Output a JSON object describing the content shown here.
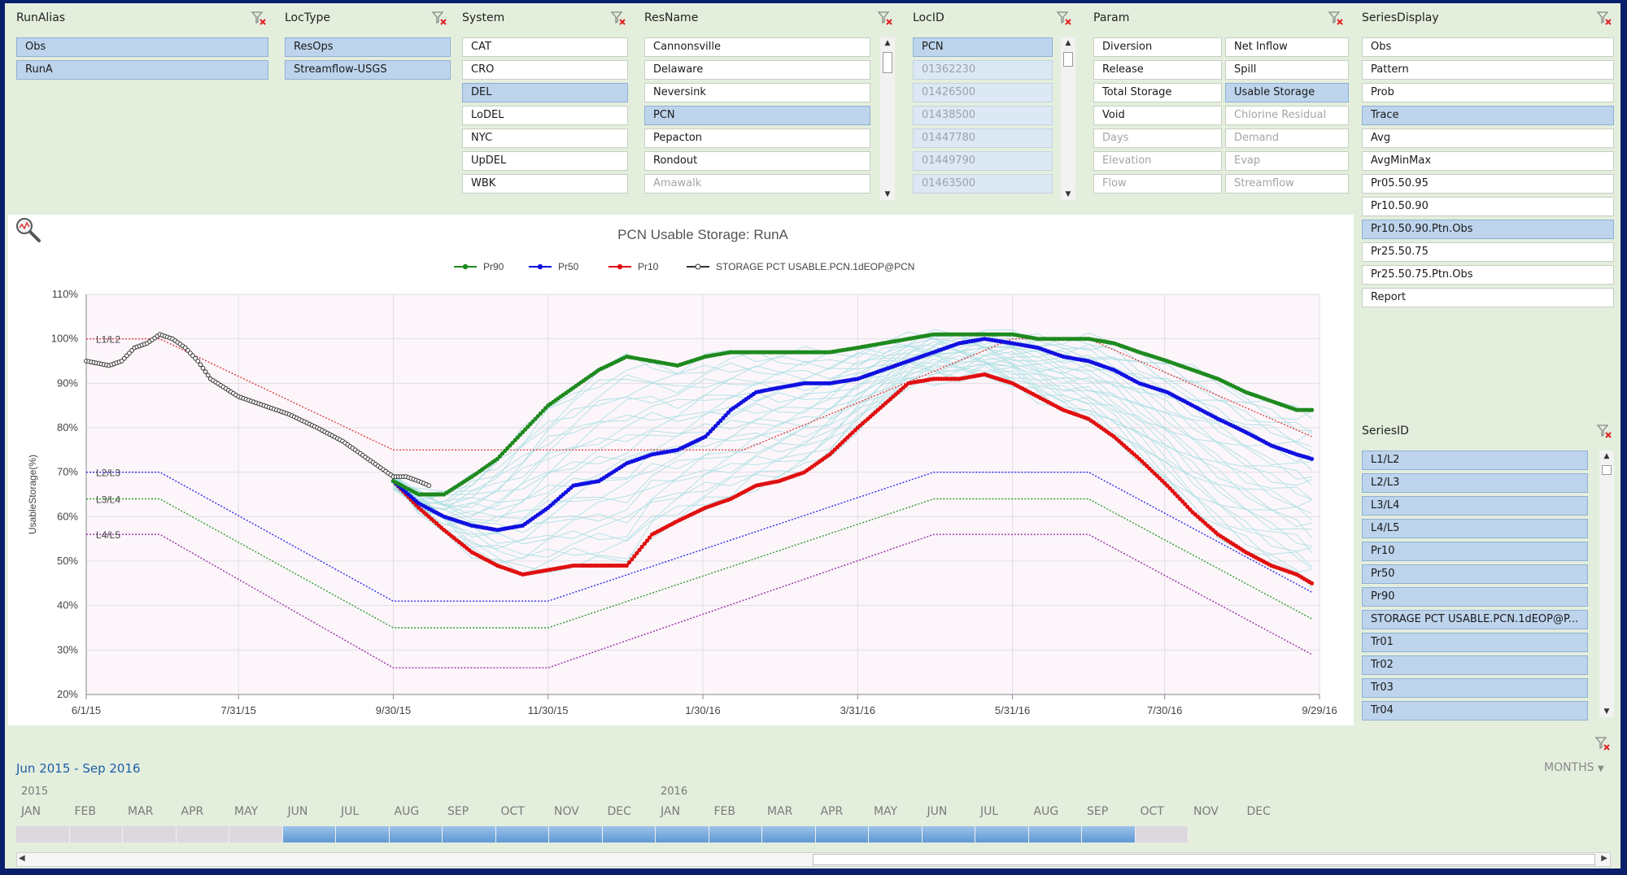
{
  "slicers": {
    "runalias": {
      "title": "RunAlias",
      "items": [
        {
          "label": "Obs",
          "state": "sel"
        },
        {
          "label": "RunA",
          "state": "sel"
        }
      ]
    },
    "loctype": {
      "title": "LocType",
      "items": [
        {
          "label": "ResOps",
          "state": "sel"
        },
        {
          "label": "Streamflow-USGS",
          "state": "sel"
        }
      ]
    },
    "system": {
      "title": "System",
      "items": [
        {
          "label": "CAT",
          "state": ""
        },
        {
          "label": "CRO",
          "state": ""
        },
        {
          "label": "DEL",
          "state": "sel"
        },
        {
          "label": "LoDEL",
          "state": ""
        },
        {
          "label": "NYC",
          "state": ""
        },
        {
          "label": "UpDEL",
          "state": ""
        },
        {
          "label": "WBK",
          "state": ""
        }
      ]
    },
    "resname": {
      "title": "ResName",
      "items": [
        {
          "label": "Cannonsville",
          "state": ""
        },
        {
          "label": "Delaware",
          "state": ""
        },
        {
          "label": "Neversink",
          "state": ""
        },
        {
          "label": "PCN",
          "state": "sel"
        },
        {
          "label": "Pepacton",
          "state": ""
        },
        {
          "label": "Rondout",
          "state": ""
        },
        {
          "label": "Amawalk",
          "state": "dim"
        }
      ]
    },
    "locid": {
      "title": "LocID",
      "items": [
        {
          "label": "PCN",
          "state": "sel"
        },
        {
          "label": "01362230",
          "state": "dimsel"
        },
        {
          "label": "01426500",
          "state": "dimsel"
        },
        {
          "label": "01438500",
          "state": "dimsel"
        },
        {
          "label": "01447780",
          "state": "dimsel"
        },
        {
          "label": "01449790",
          "state": "dimsel"
        },
        {
          "label": "01463500",
          "state": "dimsel"
        }
      ]
    },
    "param": {
      "title": "Param",
      "col1": [
        {
          "label": "Diversion",
          "state": ""
        },
        {
          "label": "Release",
          "state": ""
        },
        {
          "label": "Total Storage",
          "state": ""
        },
        {
          "label": "Void",
          "state": ""
        },
        {
          "label": "Days",
          "state": "dim"
        },
        {
          "label": "Elevation",
          "state": "dim"
        },
        {
          "label": "Flow",
          "state": "dim"
        }
      ],
      "col2": [
        {
          "label": "Net Inflow",
          "state": ""
        },
        {
          "label": "Spill",
          "state": ""
        },
        {
          "label": "Usable Storage",
          "state": "sel"
        },
        {
          "label": "Chlorine Residual",
          "state": "dim"
        },
        {
          "label": "Demand",
          "state": "dim"
        },
        {
          "label": "Evap",
          "state": "dim"
        },
        {
          "label": "Streamflow",
          "state": "dim"
        }
      ]
    },
    "seriesdisplay": {
      "title": "SeriesDisplay",
      "items": [
        {
          "label": "Obs",
          "state": ""
        },
        {
          "label": "Pattern",
          "state": ""
        },
        {
          "label": "Prob",
          "state": ""
        },
        {
          "label": "Trace",
          "state": "sel"
        },
        {
          "label": "Avg",
          "state": ""
        },
        {
          "label": "AvgMinMax",
          "state": ""
        },
        {
          "label": "Pr05.50.95",
          "state": ""
        },
        {
          "label": "Pr10.50.90",
          "state": ""
        },
        {
          "label": "Pr10.50.90.Ptn.Obs",
          "state": "sel"
        },
        {
          "label": "Pr25.50.75",
          "state": ""
        },
        {
          "label": "Pr25.50.75.Ptn.Obs",
          "state": ""
        },
        {
          "label": "Report",
          "state": ""
        }
      ]
    },
    "seriesid": {
      "title": "SeriesID",
      "items": [
        {
          "label": "L1/L2",
          "state": "sel"
        },
        {
          "label": "L2/L3",
          "state": "sel"
        },
        {
          "label": "L3/L4",
          "state": "sel"
        },
        {
          "label": "L4/L5",
          "state": "sel"
        },
        {
          "label": "Pr10",
          "state": "sel"
        },
        {
          "label": "Pr50",
          "state": "sel"
        },
        {
          "label": "Pr90",
          "state": "sel"
        },
        {
          "label": "STORAGE PCT USABLE.PCN.1dEOP@P...",
          "state": "sel"
        },
        {
          "label": "Tr01",
          "state": "sel"
        },
        {
          "label": "Tr02",
          "state": "sel"
        },
        {
          "label": "Tr03",
          "state": "sel"
        },
        {
          "label": "Tr04",
          "state": "sel"
        }
      ]
    }
  },
  "chart_data": {
    "type": "line",
    "title": "PCN Usable Storage: RunA",
    "ylabel": "UsableStorage(%)",
    "xlabel": "",
    "ylim": [
      20,
      110
    ],
    "xlim": [
      "2015-06-01",
      "2016-09-29"
    ],
    "grid": true,
    "legend_position": "top-center",
    "y_ticks": [
      "20%",
      "30%",
      "40%",
      "50%",
      "60%",
      "70%",
      "80%",
      "90%",
      "100%",
      "110%"
    ],
    "x_ticks": [
      "6/1/15",
      "7/31/15",
      "9/30/15",
      "11/30/15",
      "1/30/16",
      "3/31/16",
      "5/31/16",
      "7/30/16",
      "9/29/16"
    ],
    "legend": [
      "Pr90",
      "Pr50",
      "Pr10",
      "STORAGE PCT USABLE.PCN.1dEOP@PCN"
    ],
    "rule_labels": [
      "L1/L2",
      "L2/L3",
      "L3/L4",
      "L4/L5"
    ],
    "series": [
      {
        "name": "Pr90",
        "color": "#1e8a1e",
        "style": "marker",
        "points": [
          [
            "2015-09-30",
            68
          ],
          [
            "2015-10-10",
            65
          ],
          [
            "2015-10-20",
            65
          ],
          [
            "2015-10-31",
            69
          ],
          [
            "2015-11-10",
            73
          ],
          [
            "2015-11-20",
            79
          ],
          [
            "2015-11-30",
            85
          ],
          [
            "2015-12-10",
            89
          ],
          [
            "2015-12-20",
            93
          ],
          [
            "2015-12-31",
            96
          ],
          [
            "2016-01-10",
            95
          ],
          [
            "2016-01-20",
            94
          ],
          [
            "2016-01-31",
            96
          ],
          [
            "2016-02-10",
            97
          ],
          [
            "2016-02-20",
            97
          ],
          [
            "2016-02-29",
            97
          ],
          [
            "2016-03-10",
            97
          ],
          [
            "2016-03-20",
            97
          ],
          [
            "2016-03-31",
            98
          ],
          [
            "2016-04-10",
            99
          ],
          [
            "2016-04-20",
            100
          ],
          [
            "2016-04-30",
            101
          ],
          [
            "2016-05-10",
            101
          ],
          [
            "2016-05-20",
            101
          ],
          [
            "2016-05-31",
            101
          ],
          [
            "2016-06-10",
            100
          ],
          [
            "2016-06-20",
            100
          ],
          [
            "2016-06-30",
            100
          ],
          [
            "2016-07-10",
            99
          ],
          [
            "2016-07-20",
            97
          ],
          [
            "2016-07-31",
            95
          ],
          [
            "2016-08-10",
            93
          ],
          [
            "2016-08-20",
            91
          ],
          [
            "2016-08-31",
            88
          ],
          [
            "2016-09-10",
            86
          ],
          [
            "2016-09-20",
            84
          ],
          [
            "2016-09-26",
            84
          ]
        ]
      },
      {
        "name": "Pr50",
        "color": "#1010e0",
        "style": "marker",
        "points": [
          [
            "2015-09-30",
            68
          ],
          [
            "2015-10-10",
            63
          ],
          [
            "2015-10-20",
            60
          ],
          [
            "2015-10-31",
            58
          ],
          [
            "2015-11-10",
            57
          ],
          [
            "2015-11-20",
            58
          ],
          [
            "2015-11-30",
            62
          ],
          [
            "2015-12-10",
            67
          ],
          [
            "2015-12-20",
            68
          ],
          [
            "2015-12-31",
            72
          ],
          [
            "2016-01-10",
            74
          ],
          [
            "2016-01-20",
            75
          ],
          [
            "2016-01-31",
            78
          ],
          [
            "2016-02-10",
            84
          ],
          [
            "2016-02-20",
            88
          ],
          [
            "2016-02-29",
            89
          ],
          [
            "2016-03-10",
            90
          ],
          [
            "2016-03-20",
            90
          ],
          [
            "2016-03-31",
            91
          ],
          [
            "2016-04-10",
            93
          ],
          [
            "2016-04-20",
            95
          ],
          [
            "2016-04-30",
            97
          ],
          [
            "2016-05-10",
            99
          ],
          [
            "2016-05-20",
            100
          ],
          [
            "2016-05-31",
            99
          ],
          [
            "2016-06-10",
            98
          ],
          [
            "2016-06-20",
            96
          ],
          [
            "2016-06-30",
            95
          ],
          [
            "2016-07-10",
            93
          ],
          [
            "2016-07-20",
            90
          ],
          [
            "2016-07-31",
            88
          ],
          [
            "2016-08-10",
            85
          ],
          [
            "2016-08-20",
            82
          ],
          [
            "2016-08-31",
            79
          ],
          [
            "2016-09-10",
            76
          ],
          [
            "2016-09-20",
            74
          ],
          [
            "2016-09-26",
            73
          ]
        ]
      },
      {
        "name": "Pr10",
        "color": "#e01010",
        "style": "marker",
        "points": [
          [
            "2015-09-30",
            68
          ],
          [
            "2015-10-10",
            62
          ],
          [
            "2015-10-20",
            57
          ],
          [
            "2015-10-31",
            52
          ],
          [
            "2015-11-10",
            49
          ],
          [
            "2015-11-20",
            47
          ],
          [
            "2015-11-30",
            48
          ],
          [
            "2015-12-10",
            49
          ],
          [
            "2015-12-20",
            49
          ],
          [
            "2015-12-31",
            49
          ],
          [
            "2016-01-10",
            56
          ],
          [
            "2016-01-20",
            59
          ],
          [
            "2016-01-31",
            62
          ],
          [
            "2016-02-10",
            64
          ],
          [
            "2016-02-20",
            67
          ],
          [
            "2016-02-29",
            68
          ],
          [
            "2016-03-10",
            70
          ],
          [
            "2016-03-20",
            74
          ],
          [
            "2016-03-31",
            80
          ],
          [
            "2016-04-10",
            85
          ],
          [
            "2016-04-20",
            90
          ],
          [
            "2016-04-30",
            91
          ],
          [
            "2016-05-10",
            91
          ],
          [
            "2016-05-20",
            92
          ],
          [
            "2016-05-31",
            90
          ],
          [
            "2016-06-10",
            87
          ],
          [
            "2016-06-20",
            84
          ],
          [
            "2016-06-30",
            82
          ],
          [
            "2016-07-10",
            78
          ],
          [
            "2016-07-20",
            73
          ],
          [
            "2016-07-31",
            67
          ],
          [
            "2016-08-10",
            61
          ],
          [
            "2016-08-20",
            56
          ],
          [
            "2016-08-31",
            52
          ],
          [
            "2016-09-10",
            49
          ],
          [
            "2016-09-20",
            47
          ],
          [
            "2016-09-26",
            45
          ]
        ]
      },
      {
        "name": "STORAGE PCT USABLE.PCN.1dEOP@PCN",
        "color": "#333333",
        "style": "open-marker",
        "points": [
          [
            "2015-06-01",
            95
          ],
          [
            "2015-06-10",
            94
          ],
          [
            "2015-06-15",
            95
          ],
          [
            "2015-06-20",
            98
          ],
          [
            "2015-06-25",
            99
          ],
          [
            "2015-06-30",
            101
          ],
          [
            "2015-07-05",
            100
          ],
          [
            "2015-07-10",
            98
          ],
          [
            "2015-07-15",
            95
          ],
          [
            "2015-07-20",
            91
          ],
          [
            "2015-07-31",
            87
          ],
          [
            "2015-08-10",
            85
          ],
          [
            "2015-08-20",
            83
          ],
          [
            "2015-08-31",
            80
          ],
          [
            "2015-09-10",
            77
          ],
          [
            "2015-09-20",
            73
          ],
          [
            "2015-09-30",
            69
          ],
          [
            "2015-10-05",
            69
          ],
          [
            "2015-10-10",
            68
          ],
          [
            "2015-10-14",
            67
          ]
        ]
      },
      {
        "name": "L1/L2",
        "color": "#e04040",
        "style": "dotted",
        "points": [
          [
            "2015-06-01",
            100
          ],
          [
            "2015-06-30",
            100
          ],
          [
            "2015-09-30",
            75
          ],
          [
            "2016-02-15",
            75
          ],
          [
            "2016-05-31",
            100
          ],
          [
            "2016-06-30",
            100
          ],
          [
            "2016-09-26",
            78
          ]
        ]
      },
      {
        "name": "L2/L3",
        "color": "#2a2aee",
        "style": "dotted",
        "points": [
          [
            "2015-06-01",
            70
          ],
          [
            "2015-06-30",
            70
          ],
          [
            "2015-09-30",
            41
          ],
          [
            "2015-11-30",
            41
          ],
          [
            "2016-04-30",
            70
          ],
          [
            "2016-06-30",
            70
          ],
          [
            "2016-09-26",
            43
          ]
        ]
      },
      {
        "name": "L3/L4",
        "color": "#2e9a2e",
        "style": "dotted",
        "points": [
          [
            "2015-06-01",
            64
          ],
          [
            "2015-06-30",
            64
          ],
          [
            "2015-09-30",
            35
          ],
          [
            "2015-11-30",
            35
          ],
          [
            "2016-04-30",
            64
          ],
          [
            "2016-06-30",
            64
          ],
          [
            "2016-09-26",
            37
          ]
        ]
      },
      {
        "name": "L4/L5",
        "color": "#9a2aa8",
        "style": "dotted",
        "points": [
          [
            "2015-06-01",
            56
          ],
          [
            "2015-06-30",
            56
          ],
          [
            "2015-09-30",
            26
          ],
          [
            "2015-11-30",
            26
          ],
          [
            "2016-04-30",
            56
          ],
          [
            "2016-06-30",
            56
          ],
          [
            "2016-09-26",
            29
          ]
        ]
      }
    ]
  },
  "timeline": {
    "range_label": "Jun 2015 - Sep 2016",
    "level": "MONTHS",
    "years": [
      "2015",
      "2016"
    ],
    "months": [
      "JAN",
      "FEB",
      "MAR",
      "APR",
      "MAY",
      "JUN",
      "JUL",
      "AUG",
      "SEP",
      "OCT",
      "NOV",
      "DEC",
      "JAN",
      "FEB",
      "MAR",
      "APR",
      "MAY",
      "JUN",
      "JUL",
      "AUG",
      "SEP",
      "OCT",
      "NOV",
      "DEC"
    ],
    "selected_range": [
      "2015-06",
      "2016-09"
    ]
  }
}
